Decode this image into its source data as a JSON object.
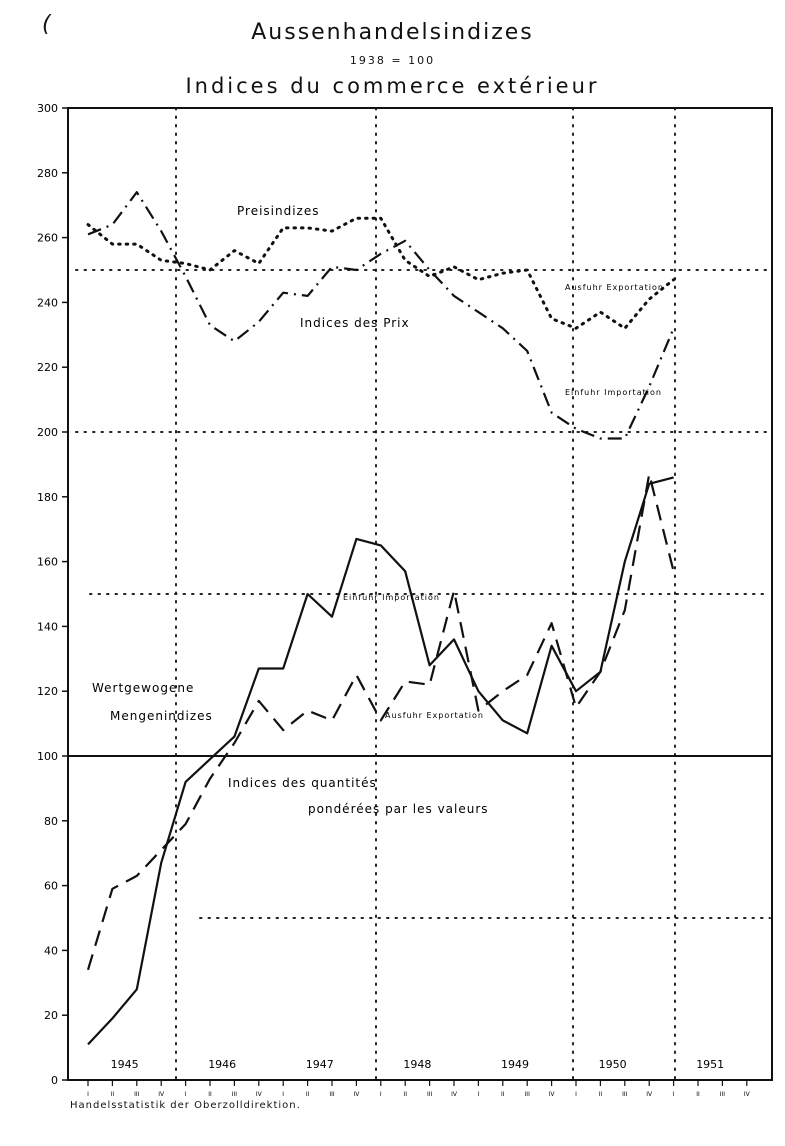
{
  "header": {
    "mark": "(",
    "title": "Aussenhandelsindizes",
    "base": "1938 = 100",
    "subtitle": "Indices du commerce extérieur"
  },
  "source": "Handelsstatistik der Oberzolldirektion.",
  "chart_data": {
    "type": "line",
    "ylim": [
      0,
      300
    ],
    "yticks": [
      "0",
      "20",
      "40",
      "60",
      "80",
      "100",
      "120",
      "140",
      "160",
      "180",
      "200",
      "220",
      "240",
      "260",
      "280",
      "300"
    ],
    "years": [
      "1945",
      "1946",
      "1947",
      "1948",
      "1949",
      "1950",
      "1951"
    ],
    "quarters": [
      "I",
      "II",
      "III",
      "IV",
      "I",
      "II",
      "III",
      "IV",
      "I",
      "II",
      "III",
      "IV",
      "I",
      "II",
      "III",
      "IV",
      "I",
      "II",
      "III",
      "IV",
      "I",
      "II",
      "III",
      "IV",
      "I",
      "II",
      "III",
      "IV"
    ],
    "grid": "dotted",
    "reference_line": 100,
    "annotations": {
      "price_de": "Preisindizes",
      "price_fr": "Indices des Prix",
      "export_price": "Ausfuhr Exportation",
      "import_price": "Einfuhr Importation",
      "import_qty": "Einfuhr Importation",
      "export_qty": "Ausfuhr Exportation",
      "qty_de_1": "Wertgewogene",
      "qty_de_2": "Mengenindizes",
      "qty_fr_1": "Indices des quantités",
      "qty_fr_2": "pondérées par les valeurs"
    },
    "series": [
      {
        "group": "price",
        "style": "dotted",
        "x": [
          0,
          1,
          2,
          3,
          4,
          5,
          6,
          7,
          8,
          9,
          10,
          11,
          12,
          13,
          14,
          15,
          16,
          17,
          18,
          19,
          20,
          21,
          22,
          23,
          24
        ],
        "values": [
          264,
          258,
          258,
          253,
          252,
          250,
          256,
          252,
          263,
          263,
          262,
          266,
          266,
          253,
          248,
          251,
          247,
          249,
          250,
          235,
          232,
          237,
          232,
          241,
          247
        ]
      },
      {
        "group": "price",
        "style": "dash-dot",
        "x": [
          0,
          1,
          2,
          3,
          4,
          5,
          6,
          7,
          8,
          9,
          10,
          11,
          12,
          13,
          14,
          15,
          16,
          17,
          18,
          19,
          20,
          21,
          22,
          23,
          24
        ],
        "values": [
          261,
          264,
          274,
          262,
          248,
          233,
          228,
          234,
          243,
          242,
          251,
          250,
          255,
          259,
          250,
          242,
          237,
          232,
          225,
          206,
          201,
          198,
          198,
          214,
          232
        ]
      },
      {
        "group": "quantity",
        "style": "solid",
        "x": [
          0,
          1,
          2,
          3,
          4,
          5,
          6,
          7,
          8,
          9,
          10,
          11,
          12,
          13,
          14,
          15,
          16,
          17,
          18,
          19,
          20,
          21,
          22,
          23,
          24
        ],
        "values": [
          11,
          19,
          28,
          67,
          92,
          99,
          106,
          127,
          127,
          150,
          143,
          167,
          165,
          157,
          128,
          136,
          120,
          111,
          107,
          134,
          120,
          126,
          160,
          184,
          186
        ]
      },
      {
        "group": "quantity",
        "style": "dashed",
        "x": [
          0,
          1,
          2,
          3,
          4,
          5,
          6,
          7,
          8,
          9,
          10,
          11,
          12,
          13,
          14,
          15,
          16,
          17,
          18,
          19,
          20,
          21,
          22,
          23,
          24
        ],
        "values": [
          34,
          59,
          63,
          71,
          79,
          93,
          104,
          117,
          108,
          114,
          111,
          125,
          111,
          123,
          122,
          151,
          114,
          120,
          125,
          141,
          115,
          126,
          145,
          187,
          157
        ]
      }
    ]
  }
}
